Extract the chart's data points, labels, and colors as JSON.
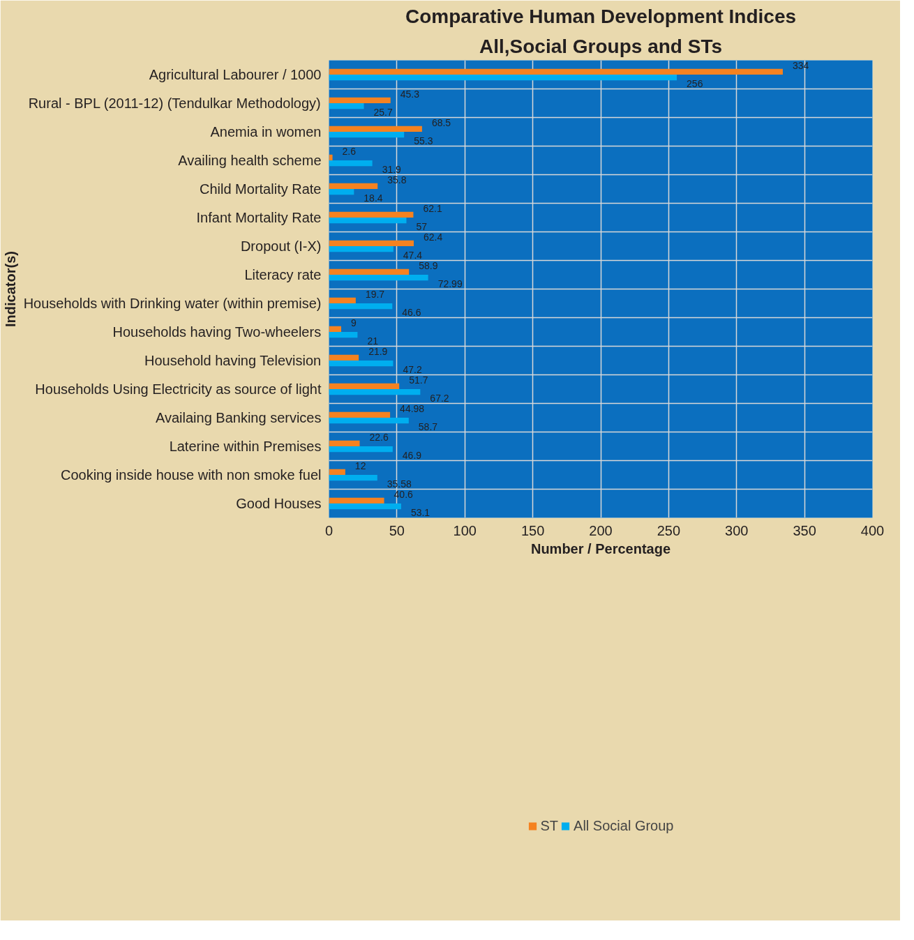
{
  "chart_data": {
    "type": "bar",
    "orientation": "horizontal",
    "title": "Comparative Human Development Indices",
    "subtitle": "All,Social Groups and STs",
    "xlabel": "Number / Percentage",
    "ylabel": "Indicator(s)",
    "categories": [
      "Agricultural Labourer / 1000",
      "Rural - BPL (2011-12) (Tendulkar Methodology)",
      "Anemia in women",
      "Availing health scheme",
      "Child Mortality Rate",
      "Infant Mortality Rate",
      "Dropout (I-X)",
      "Literacy rate",
      "Households with Drinking water (within premise)",
      "Households having Two-wheelers",
      "Household having Television",
      "Households Using Electricity as source of light",
      "Availaing Banking services",
      "Laterine within Premises",
      "Cooking inside house with non smoke fuel",
      "Good Houses"
    ],
    "series": [
      {
        "name": "ST",
        "color": "#f58220",
        "values": [
          334,
          45.3,
          68.5,
          2.6,
          35.8,
          62.1,
          62.4,
          58.9,
          19.7,
          9,
          21.9,
          51.7,
          44.98,
          22.6,
          12,
          40.6
        ]
      },
      {
        "name": "All Social Group",
        "color": "#00aeef",
        "values": [
          256,
          25.7,
          55.3,
          31.9,
          18.4,
          57,
          47.4,
          72.99,
          46.6,
          21,
          47.2,
          67.2,
          58.7,
          46.9,
          35.58,
          53.1
        ]
      }
    ],
    "xlim": [
      0,
      400
    ],
    "xticks": [
      0,
      50,
      100,
      150,
      200,
      250,
      300,
      350,
      400
    ],
    "grid": true,
    "legend": "bottom",
    "data_labels": true
  }
}
